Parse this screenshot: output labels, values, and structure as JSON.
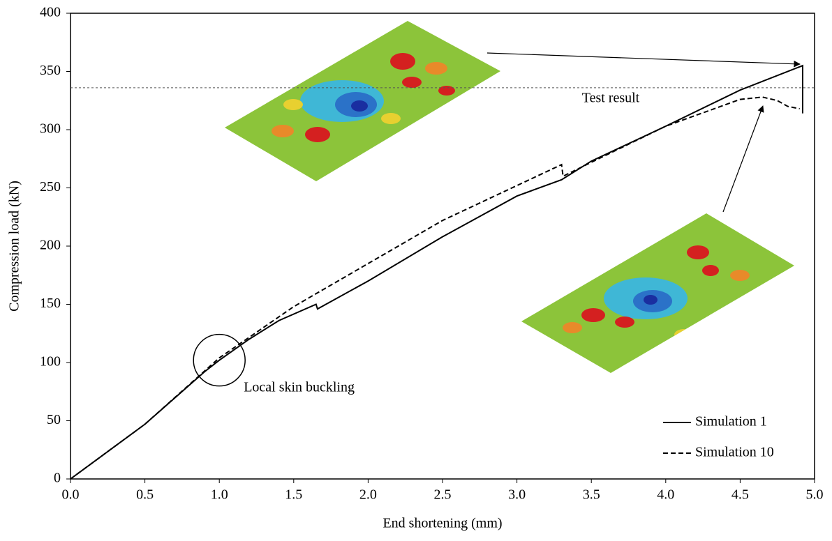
{
  "chart_data": {
    "type": "line",
    "x_label": "End shortening (mm)",
    "y_label": "Compression load (kN)",
    "series": [
      {
        "name": "Simulation 1",
        "color": "#000000",
        "linestyle": "solid",
        "x": [
          0,
          0.5,
          0.9,
          1.0,
          1.2,
          1.4,
          1.65,
          1.66,
          2.0,
          2.5,
          3.0,
          3.3,
          3.5,
          4.0,
          4.5,
          4.9,
          4.92,
          4.92
        ],
        "values": [
          0,
          47,
          92,
          102,
          120,
          136,
          150,
          146,
          170,
          208,
          243,
          257,
          273,
          303,
          334,
          354,
          355,
          314
        ]
      },
      {
        "name": "Simulation 10",
        "color": "#000000",
        "linestyle": "dashed",
        "x": [
          0,
          0.5,
          1.0,
          1.5,
          2.0,
          2.5,
          3.0,
          3.3,
          3.31,
          3.5,
          4.0,
          4.5,
          4.65,
          4.75,
          4.82,
          4.9
        ],
        "values": [
          0,
          47,
          104,
          148,
          185,
          222,
          252,
          270,
          260,
          272,
          303,
          326,
          328,
          325,
          320,
          318
        ]
      }
    ],
    "reference_lines": [
      {
        "value": 336,
        "label": "Test result"
      }
    ],
    "annotations": [
      {
        "text": "Local skin buckling",
        "x": 1.0,
        "y": 102
      }
    ],
    "xlim": [
      0,
      5
    ],
    "ylim": [
      0,
      400
    ],
    "xticks": [
      {
        "value": 0,
        "label": "0.0"
      },
      {
        "value": 0.5,
        "label": "0.5"
      },
      {
        "value": 1,
        "label": "1.0"
      },
      {
        "value": 1.5,
        "label": "1.5"
      },
      {
        "value": 2,
        "label": "2.0"
      },
      {
        "value": 2.5,
        "label": "2.5"
      },
      {
        "value": 3,
        "label": "3.0"
      },
      {
        "value": 3.5,
        "label": "3.5"
      },
      {
        "value": 4,
        "label": "4.0"
      },
      {
        "value": 4.5,
        "label": "4.5"
      },
      {
        "value": 5,
        "label": "5.0"
      }
    ],
    "yticks": [
      0,
      50,
      100,
      150,
      200,
      250,
      300,
      350,
      400
    ],
    "grid": false,
    "legend": "lower right"
  }
}
